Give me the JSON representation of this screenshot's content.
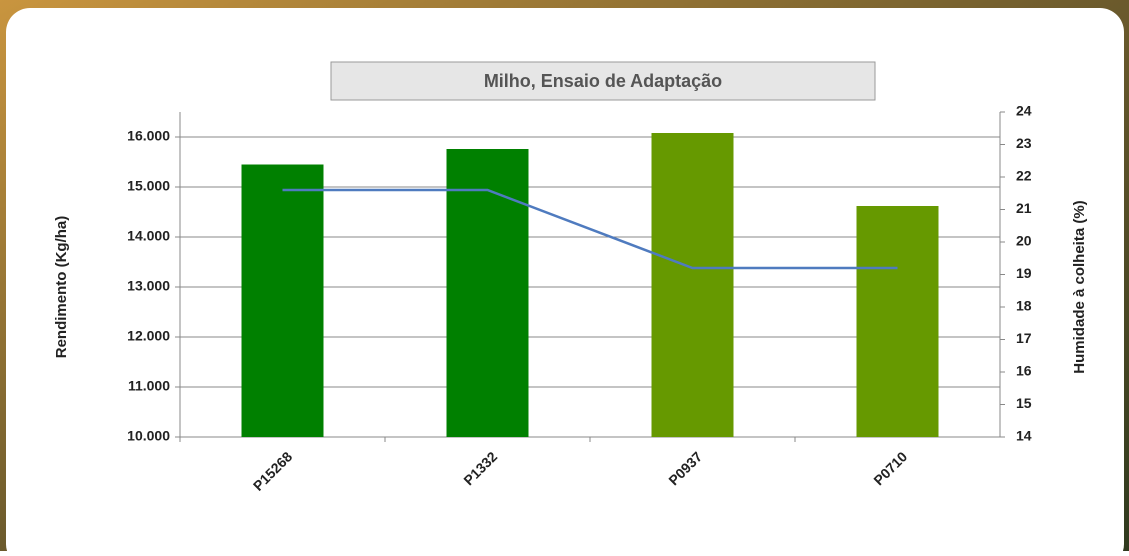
{
  "chart_data": {
    "type": "bar-line",
    "title": "Milho, Ensaio  de Adaptação",
    "y_label": "Rendimento (Kg/ha)",
    "y2_label": "Humidade à colheita (%)",
    "categories": [
      "P15268",
      "P1332",
      "P0937",
      "P0710"
    ],
    "series": [
      {
        "type": "bar",
        "colors": [
          "#008000",
          "#008000",
          "#669900",
          "#669900"
        ],
        "values": [
          15450,
          15760,
          16080,
          14620
        ]
      },
      {
        "type": "line",
        "axis": "y2",
        "color": "#4f7bbf",
        "values": [
          21.6,
          21.6,
          19.2,
          19.2
        ]
      }
    ],
    "ylim": [
      10000,
      16500
    ],
    "yticks": [
      {
        "value": 10000,
        "label": "10.000"
      },
      {
        "value": 11000,
        "label": "11.000"
      },
      {
        "value": 12000,
        "label": "12.000"
      },
      {
        "value": 13000,
        "label": "13.000"
      },
      {
        "value": 14000,
        "label": "14.000"
      },
      {
        "value": 15000,
        "label": "15.000"
      },
      {
        "value": 16000,
        "label": "16.000"
      }
    ],
    "y2lim": [
      14,
      24
    ],
    "y2ticks": [
      14,
      15,
      16,
      17,
      18,
      19,
      20,
      21,
      22,
      23,
      24
    ],
    "grid": true
  }
}
